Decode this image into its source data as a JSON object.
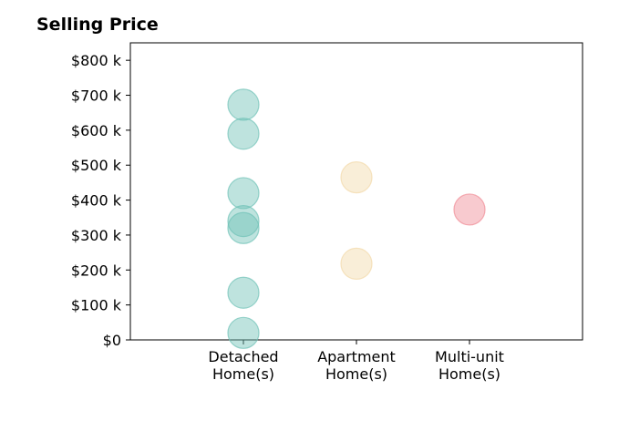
{
  "chart_data": {
    "type": "scatter",
    "title": "Selling Price",
    "xlabel": "",
    "ylabel": "",
    "categories": [
      [
        "Detached",
        "Home(s)"
      ],
      [
        "Apartment",
        "Home(s)"
      ],
      [
        "Multi-unit",
        "Home(s)"
      ]
    ],
    "y_ticks": [
      "$0",
      "$100 k",
      "$200 k",
      "$300 k",
      "$400 k",
      "$500 k",
      "$600 k",
      "$700 k",
      "$800 k"
    ],
    "y_tick_values": [
      0,
      100000,
      200000,
      300000,
      400000,
      500000,
      600000,
      700000,
      800000
    ],
    "ylim": [
      0,
      850000
    ],
    "grid": false,
    "series": [
      {
        "category": "Detached Home(s)",
        "color": "#6fc2b6",
        "values": [
          673000,
          590000,
          420000,
          340000,
          320000,
          135000,
          20000
        ]
      },
      {
        "category": "Apartment Home(s)",
        "color": "#f2d9a8",
        "values": [
          465000,
          218000
        ]
      },
      {
        "category": "Multi-unit Home(s)",
        "color": "#f08a94",
        "values": [
          373000
        ]
      }
    ]
  }
}
